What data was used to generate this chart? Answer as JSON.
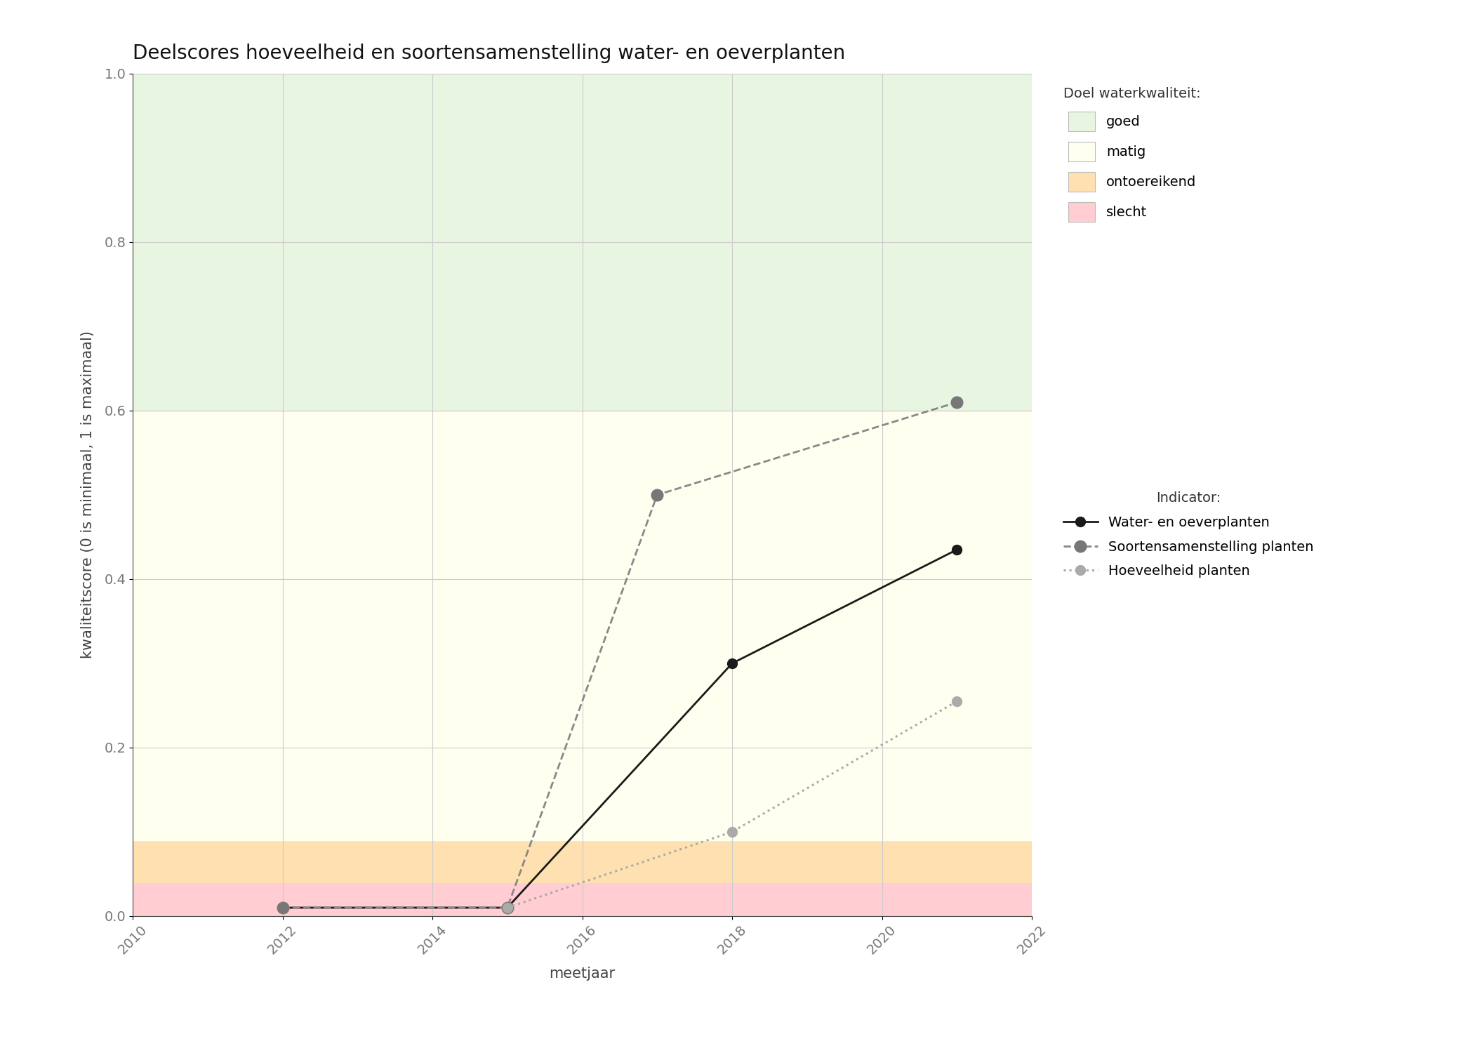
{
  "title": "Deelscores hoeveelheid en soortensamenstelling water- en oeverplanten",
  "xlabel": "meetjaar",
  "ylabel": "kwaliteitscore (0 is minimaal, 1 is maximaal)",
  "xlim": [
    2010,
    2022
  ],
  "ylim": [
    0.0,
    1.0
  ],
  "xticks": [
    2010,
    2012,
    2014,
    2016,
    2018,
    2020,
    2022
  ],
  "yticks": [
    0.0,
    0.2,
    0.4,
    0.6,
    0.8,
    1.0
  ],
  "bg_zones": [
    {
      "ymin": 0.0,
      "ymax": 0.04,
      "color": "#ffcdd2",
      "label": "slecht"
    },
    {
      "ymin": 0.04,
      "ymax": 0.09,
      "color": "#ffe0b0",
      "label": "ontoereikend"
    },
    {
      "ymin": 0.09,
      "ymax": 0.6,
      "color": "#fffff0",
      "label": "matig"
    },
    {
      "ymin": 0.6,
      "ymax": 1.0,
      "color": "#e8f5e0",
      "label": "goed"
    }
  ],
  "lines": [
    {
      "label": "Water- en oeverplanten",
      "x": [
        2012,
        2015,
        2018,
        2021
      ],
      "y": [
        0.01,
        0.01,
        0.3,
        0.435
      ],
      "color": "#1a1a1a",
      "linestyle": "solid",
      "linewidth": 2.0,
      "marker": "o",
      "markersize": 10,
      "markerfacecolor": "#1a1a1a",
      "markeredgecolor": "#1a1a1a"
    },
    {
      "label": "Soortensamenstelling planten",
      "x": [
        2012,
        2015,
        2017,
        2021
      ],
      "y": [
        0.01,
        0.01,
        0.5,
        0.61
      ],
      "color": "#888888",
      "linestyle": "dashed",
      "linewidth": 2.0,
      "marker": "o",
      "markersize": 12,
      "markerfacecolor": "#777777",
      "markeredgecolor": "#777777"
    },
    {
      "label": "Hoeveelheid planten",
      "x": [
        2015,
        2018,
        2021
      ],
      "y": [
        0.01,
        0.1,
        0.255
      ],
      "color": "#aaaaaa",
      "linestyle": "dotted",
      "linewidth": 2.2,
      "marker": "o",
      "markersize": 10,
      "markerfacecolor": "#aaaaaa",
      "markeredgecolor": "#aaaaaa"
    }
  ],
  "legend_quality_title": "Doel waterkwaliteit:",
  "legend_indicator_title": "Indicator:",
  "grid_color": "#cccccc",
  "grid_linewidth": 0.8,
  "background_color": "#ffffff",
  "title_fontsize": 20,
  "label_fontsize": 15,
  "tick_fontsize": 14,
  "legend_fontsize": 14
}
